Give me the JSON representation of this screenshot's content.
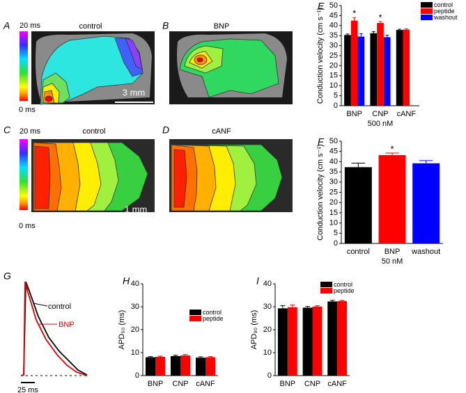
{
  "panel_labels": [
    "A",
    "B",
    "C",
    "D",
    "E",
    "F",
    "G",
    "H",
    "I"
  ],
  "maps": [
    {
      "title": "control"
    },
    {
      "title": "BNP"
    },
    {
      "title": "control"
    },
    {
      "title": "cANF"
    }
  ],
  "colorbars": [
    {
      "max": "20 ms",
      "min": "0 ms"
    },
    {
      "max": "20 ms",
      "min": "0 ms"
    }
  ],
  "scale_bars": [
    "3 mm",
    "1 mm"
  ],
  "traces": {
    "labels": [
      "control",
      "BNP"
    ],
    "scale": "25 ms"
  },
  "chart_data": [
    {
      "type": "bar",
      "ylabel": "Conduction velocity (cm s⁻¹)",
      "xlabel": "500 nM",
      "categories": [
        "BNP",
        "CNP",
        "cANF"
      ],
      "series": [
        {
          "name": "control",
          "color": "#000000",
          "values": [
            35.3,
            36.2,
            37.8
          ],
          "errors": [
            0.5,
            0.8,
            0.4
          ]
        },
        {
          "name": "peptide",
          "color": "#ff0000",
          "values": [
            42.5,
            41.3,
            38
          ],
          "errors": [
            1.5,
            0.7,
            0.4
          ],
          "annotations": [
            "*",
            "*",
            null
          ]
        },
        {
          "name": "washout",
          "color": "#0000ff",
          "values": [
            34.5,
            34.2,
            null
          ],
          "errors": [
            1.5,
            1,
            null
          ]
        }
      ],
      "ylim": [
        0,
        50
      ],
      "yticks": [
        0,
        5,
        10,
        15,
        20,
        25,
        30,
        35,
        40,
        45,
        50
      ],
      "legend": "upper right"
    },
    {
      "type": "bar",
      "ylabel": "Conduction velocity (cm s⁻¹)",
      "xlabel": "50 nM",
      "categories": [
        "control",
        "BNP",
        "washout"
      ],
      "values": [
        37.3,
        43.2,
        39.2
      ],
      "errors": [
        2,
        1,
        1.3
      ],
      "colors": [
        "#000000",
        "#ff0000",
        "#0000ff"
      ],
      "annotations": [
        null,
        "*",
        null
      ],
      "ylim": [
        0,
        50
      ],
      "yticks": [
        0,
        5,
        10,
        15,
        20,
        25,
        30,
        35,
        40,
        45,
        50
      ]
    },
    {
      "type": "bar",
      "ylabel": "APD₅₀ (ms)",
      "categories": [
        "BNP",
        "CNP",
        "cANF"
      ],
      "series": [
        {
          "name": "control",
          "color": "#000000",
          "values": [
            8,
            8.5,
            7.8
          ],
          "errors": [
            0.3,
            0.4,
            0.4
          ]
        },
        {
          "name": "peptide",
          "color": "#ff0000",
          "values": [
            8.2,
            8.8,
            8
          ],
          "errors": [
            0.3,
            0.4,
            0.3
          ]
        }
      ],
      "ylim": [
        0,
        40
      ],
      "yticks": [
        0,
        10,
        20,
        30,
        40
      ],
      "legend": "center right"
    },
    {
      "type": "bar",
      "ylabel": "APD₉₀ (ms)",
      "categories": [
        "BNP",
        "CNP",
        "cANF"
      ],
      "series": [
        {
          "name": "control",
          "color": "#000000",
          "values": [
            29.3,
            29.6,
            32.3
          ],
          "errors": [
            1.2,
            0.5,
            0.5
          ]
        },
        {
          "name": "peptide",
          "color": "#ff0000",
          "values": [
            29.8,
            30.1,
            32.5
          ],
          "errors": [
            1,
            0.3,
            0.3
          ]
        }
      ],
      "ylim": [
        0,
        40
      ],
      "yticks": [
        0,
        10,
        20,
        30,
        40
      ],
      "legend": "upper right"
    }
  ]
}
